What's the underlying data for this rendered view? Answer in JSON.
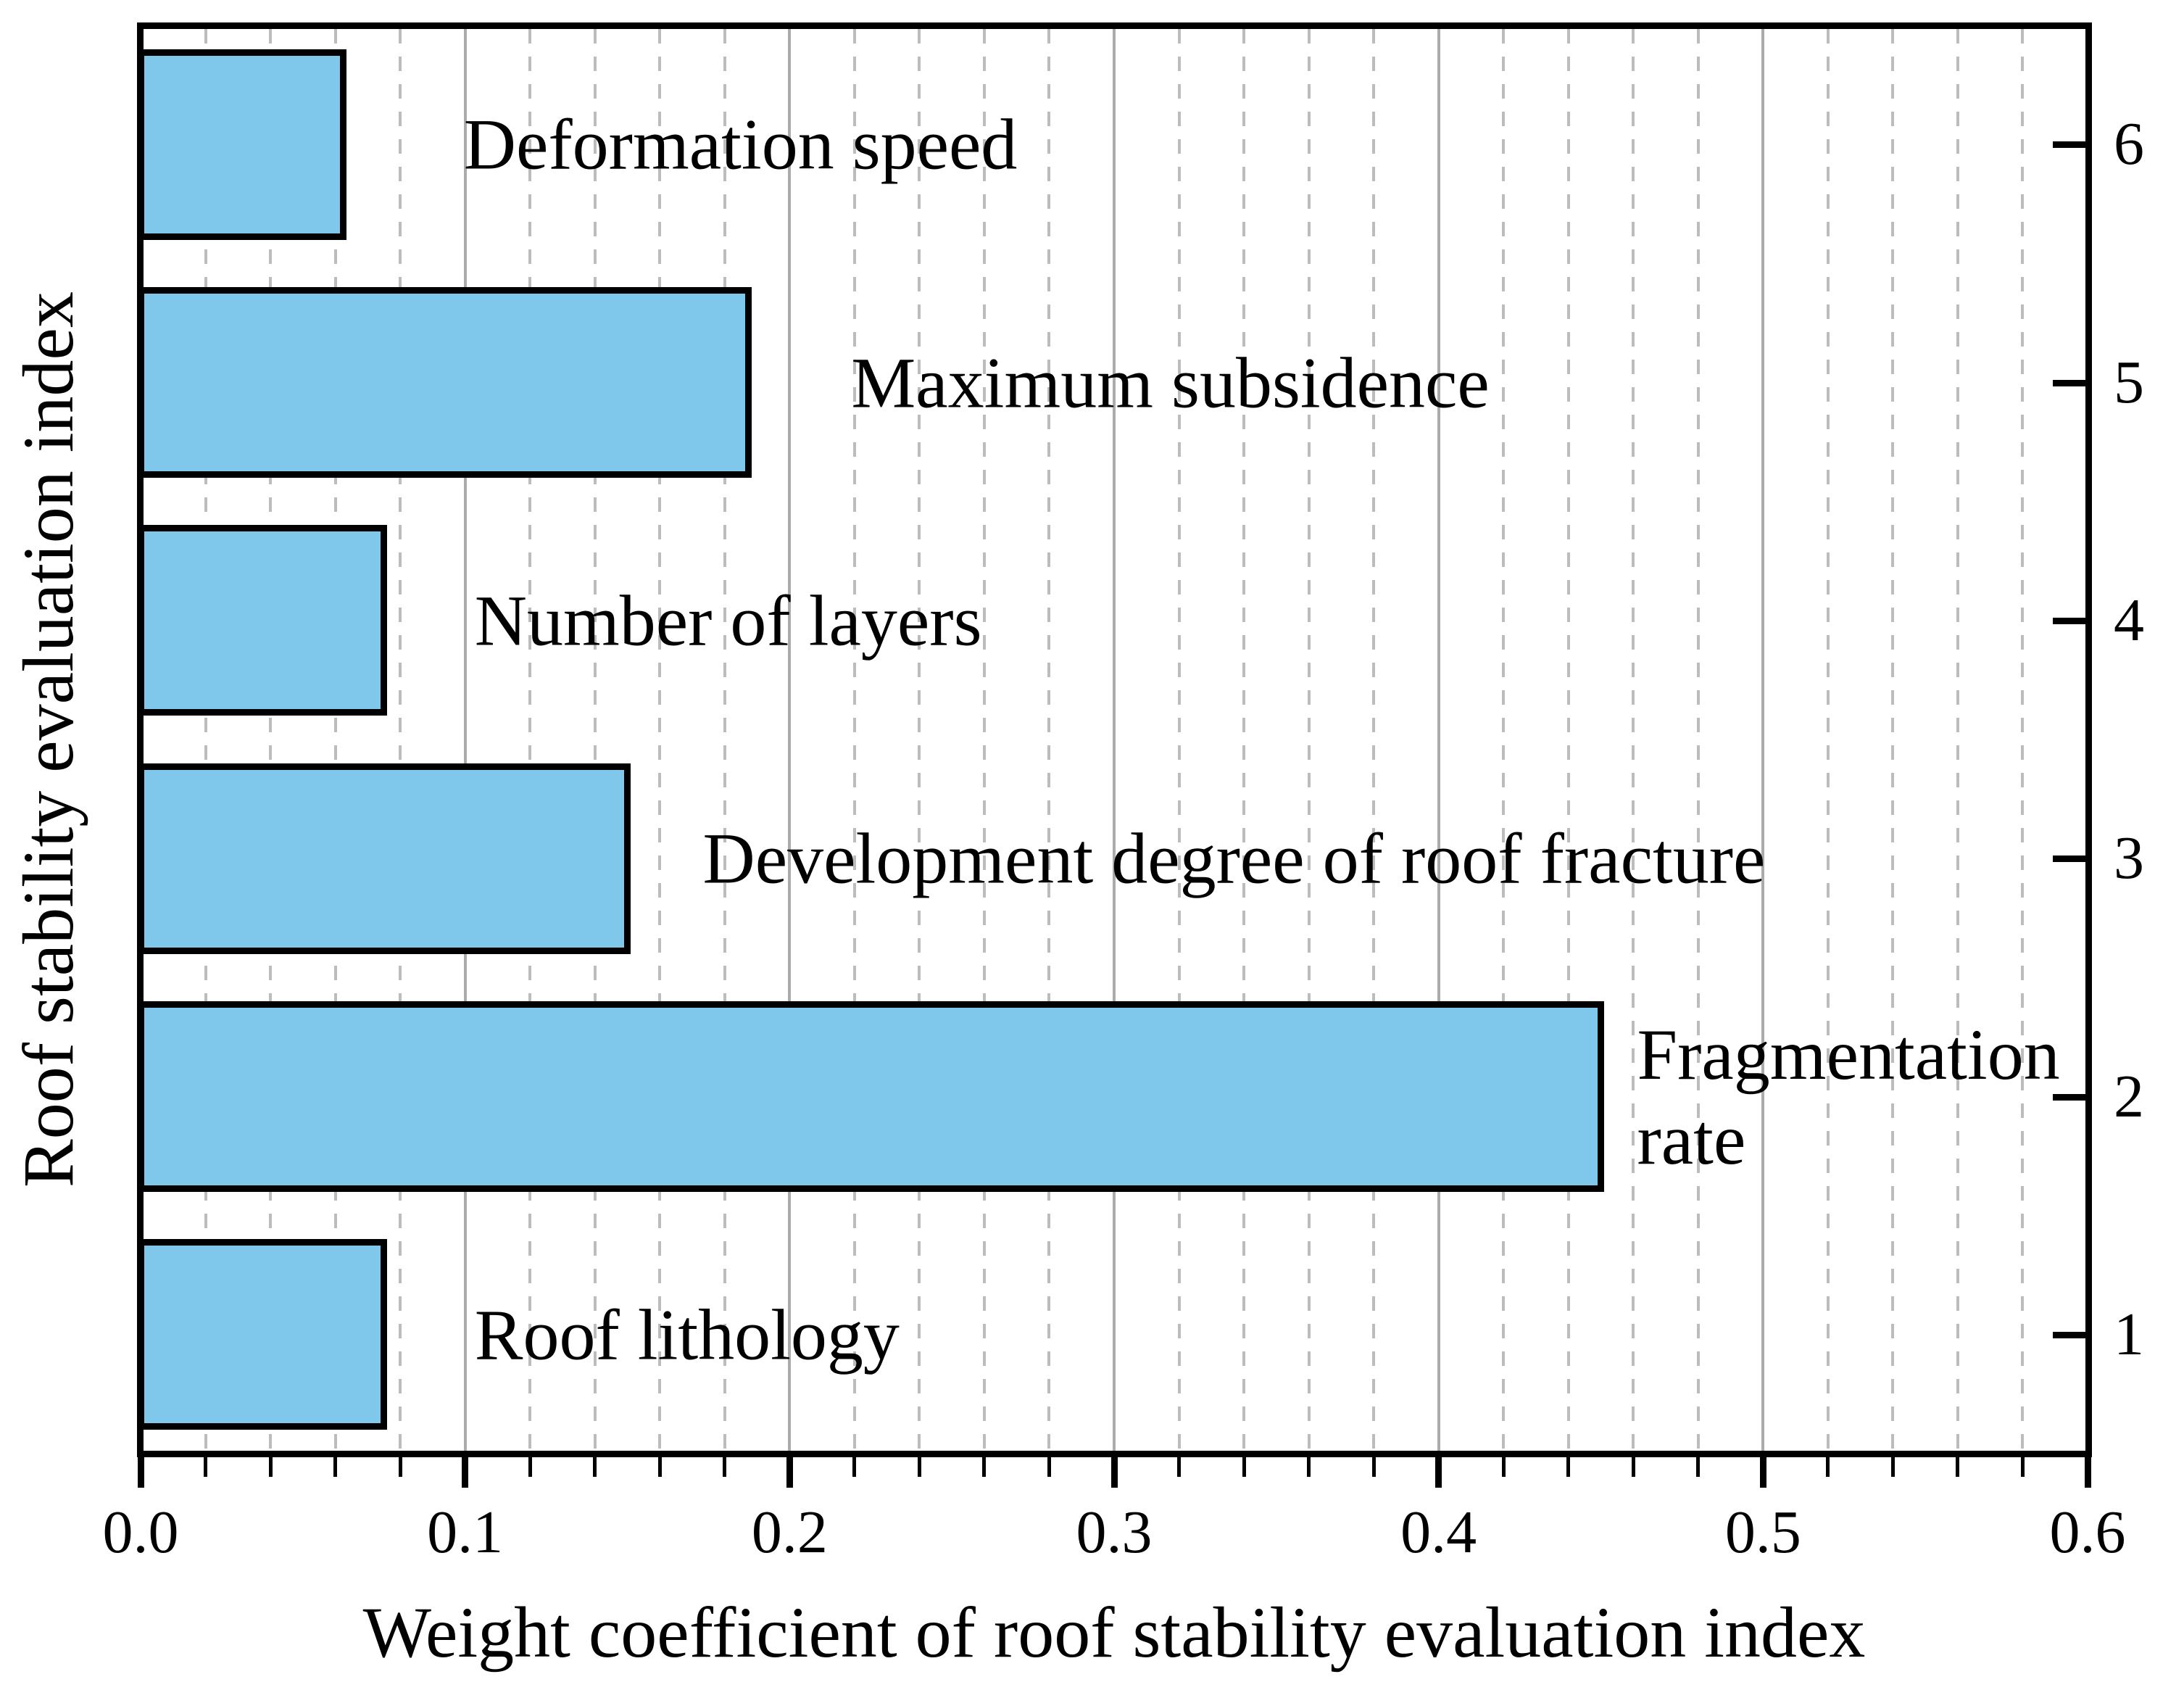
{
  "chart_data": {
    "type": "bar",
    "orientation": "horizontal",
    "xlabel": "Weight coefficient of roof stability evaluation index",
    "ylabel": "Roof stability evaluation index",
    "xlim": [
      0,
      0.6
    ],
    "x_tick_values": [
      0.0,
      0.1,
      0.2,
      0.3,
      0.4,
      0.5,
      0.6
    ],
    "x_tick_labels": [
      "0.0",
      "0.1",
      "0.2",
      "0.3",
      "0.4",
      "0.5",
      "0.6"
    ],
    "grid": {
      "minor_step": 0.02,
      "major_step": 0.1,
      "minor_style": "dashed",
      "major_style": "solid"
    },
    "legend": "none",
    "bar_color": "#7fc7eb",
    "bar_border_color": "#000000",
    "categories": [
      {
        "index": 1,
        "label": "Roof lithology",
        "value": 0.075
      },
      {
        "index": 2,
        "label": "Fragmentation rate",
        "value": 0.45
      },
      {
        "index": 3,
        "label": "Development degree of roof fracture",
        "value": 0.15
      },
      {
        "index": 4,
        "label": "Number of layers",
        "value": 0.075
      },
      {
        "index": 5,
        "label": "Maximum subsidence",
        "value": 0.1875
      },
      {
        "index": 6,
        "label": "Deformation speed",
        "value": 0.0625
      }
    ],
    "right_axis_tick_labels": [
      "1",
      "2",
      "3",
      "4",
      "5",
      "6"
    ]
  }
}
